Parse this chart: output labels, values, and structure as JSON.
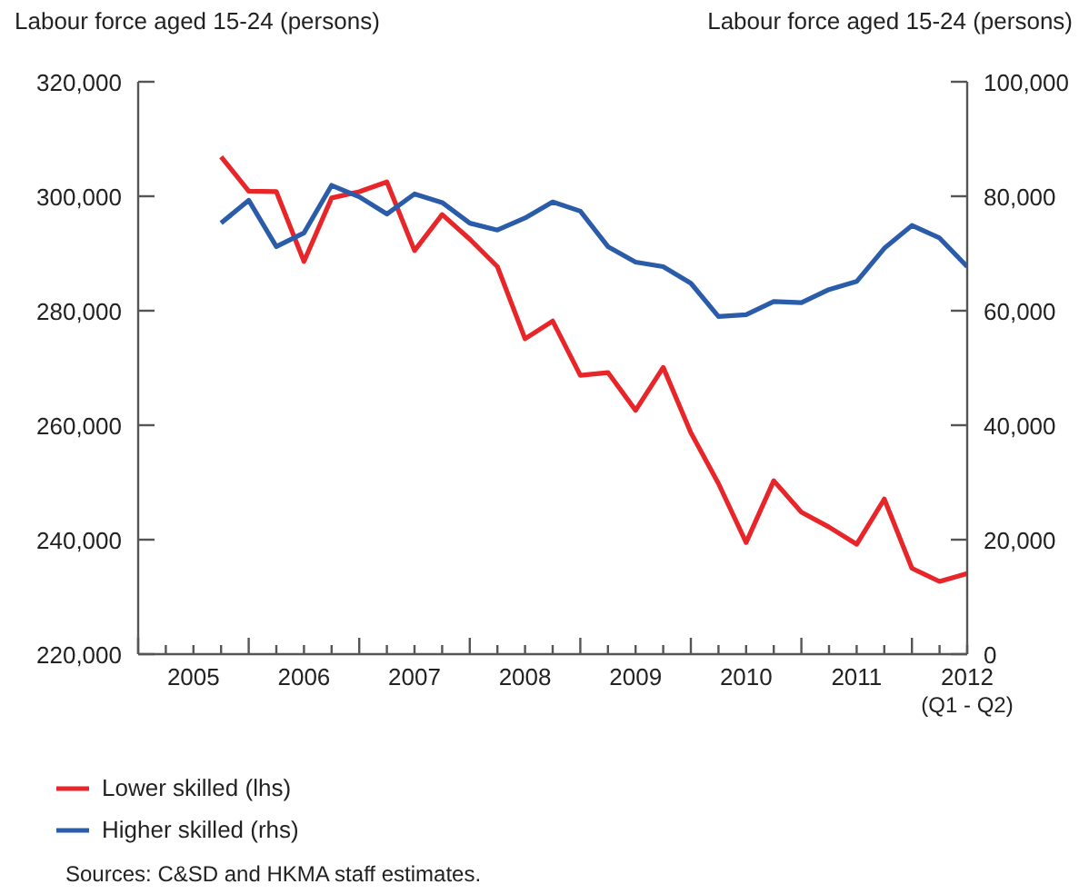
{
  "chart_data": {
    "type": "line",
    "ylabel": "Labour force aged 15-24 (persons)",
    "y2label": "Labour force aged 15-24 (persons)",
    "x": [
      2005.75,
      2006,
      2006.25,
      2006.5,
      2006.75,
      2007,
      2007.25,
      2007.5,
      2007.75,
      2008,
      2008.25,
      2008.5,
      2008.75,
      2009,
      2009.25,
      2009.5,
      2009.75,
      2010,
      2010.25,
      2010.5,
      2010.75,
      2011,
      2011.25,
      2011.5,
      2011.75,
      2012,
      2012.25,
      2012.5
    ],
    "series": [
      {
        "name": "Lower skilled (lhs)",
        "color": "#e8262a",
        "axis": "y",
        "values": [
          306900,
          300900,
          300800,
          288600,
          299700,
          300800,
          302500,
          290500,
          296800,
          292500,
          287700,
          275100,
          278200,
          268700,
          269200,
          262600,
          270100,
          258700,
          249800,
          239500,
          250300,
          244800,
          242200,
          239200,
          247100,
          235000,
          232700,
          234100
        ]
      },
      {
        "name": "Higher skilled (rhs)",
        "color": "#2a5caa",
        "axis": "y2",
        "values": [
          75300,
          79300,
          71200,
          73600,
          81900,
          79900,
          76900,
          80400,
          78900,
          75300,
          74100,
          76200,
          79000,
          77400,
          71200,
          68500,
          67700,
          64800,
          59000,
          59300,
          61600,
          61400,
          63700,
          65100,
          70900,
          74900,
          72700,
          67700
        ]
      }
    ],
    "xlim": [
      2005,
      2012.5
    ],
    "xticks": [
      {
        "value": 2005,
        "label": null
      },
      {
        "value": 2005.25,
        "label": null
      },
      {
        "value": 2005.5,
        "label": "2005"
      },
      {
        "value": 2005.75,
        "label": null
      },
      {
        "value": 2006,
        "label": null
      },
      {
        "value": 2006.25,
        "label": null
      },
      {
        "value": 2006.5,
        "label": "2006"
      },
      {
        "value": 2006.75,
        "label": null
      },
      {
        "value": 2007,
        "label": null
      },
      {
        "value": 2007.25,
        "label": null
      },
      {
        "value": 2007.5,
        "label": "2007"
      },
      {
        "value": 2007.75,
        "label": null
      },
      {
        "value": 2008,
        "label": null
      },
      {
        "value": 2008.25,
        "label": null
      },
      {
        "value": 2008.5,
        "label": "2008"
      },
      {
        "value": 2008.75,
        "label": null
      },
      {
        "value": 2009,
        "label": null
      },
      {
        "value": 2009.25,
        "label": null
      },
      {
        "value": 2009.5,
        "label": "2009"
      },
      {
        "value": 2009.75,
        "label": null
      },
      {
        "value": 2010,
        "label": null
      },
      {
        "value": 2010.25,
        "label": null
      },
      {
        "value": 2010.5,
        "label": "2010"
      },
      {
        "value": 2010.75,
        "label": null
      },
      {
        "value": 2011,
        "label": null
      },
      {
        "value": 2011.25,
        "label": null
      },
      {
        "value": 2011.5,
        "label": "2011"
      },
      {
        "value": 2011.75,
        "label": null
      },
      {
        "value": 2012,
        "label": null
      },
      {
        "value": 2012.25,
        "label": null
      },
      {
        "value": 2012.5,
        "label": "2012\n(Q1 - Q2)"
      }
    ],
    "ylim": [
      220000,
      320000
    ],
    "yticks": [
      {
        "value": 220000,
        "label": "220,000"
      },
      {
        "value": 240000,
        "label": "240,000"
      },
      {
        "value": 260000,
        "label": "260,000"
      },
      {
        "value": 280000,
        "label": "280,000"
      },
      {
        "value": 300000,
        "label": "300,000"
      },
      {
        "value": 320000,
        "label": "320,000"
      }
    ],
    "y2lim": [
      0,
      100000
    ],
    "y2ticks": [
      {
        "value": 0,
        "label": "0"
      },
      {
        "value": 20000,
        "label": "20,000"
      },
      {
        "value": 40000,
        "label": "40,000"
      },
      {
        "value": 60000,
        "label": "60,000"
      },
      {
        "value": 80000,
        "label": "80,000"
      },
      {
        "value": 100000,
        "label": "100,000"
      }
    ],
    "grid": false,
    "legend": "bottom",
    "annotations": [
      "Sources: C&SD and HKMA staff estimates."
    ]
  }
}
